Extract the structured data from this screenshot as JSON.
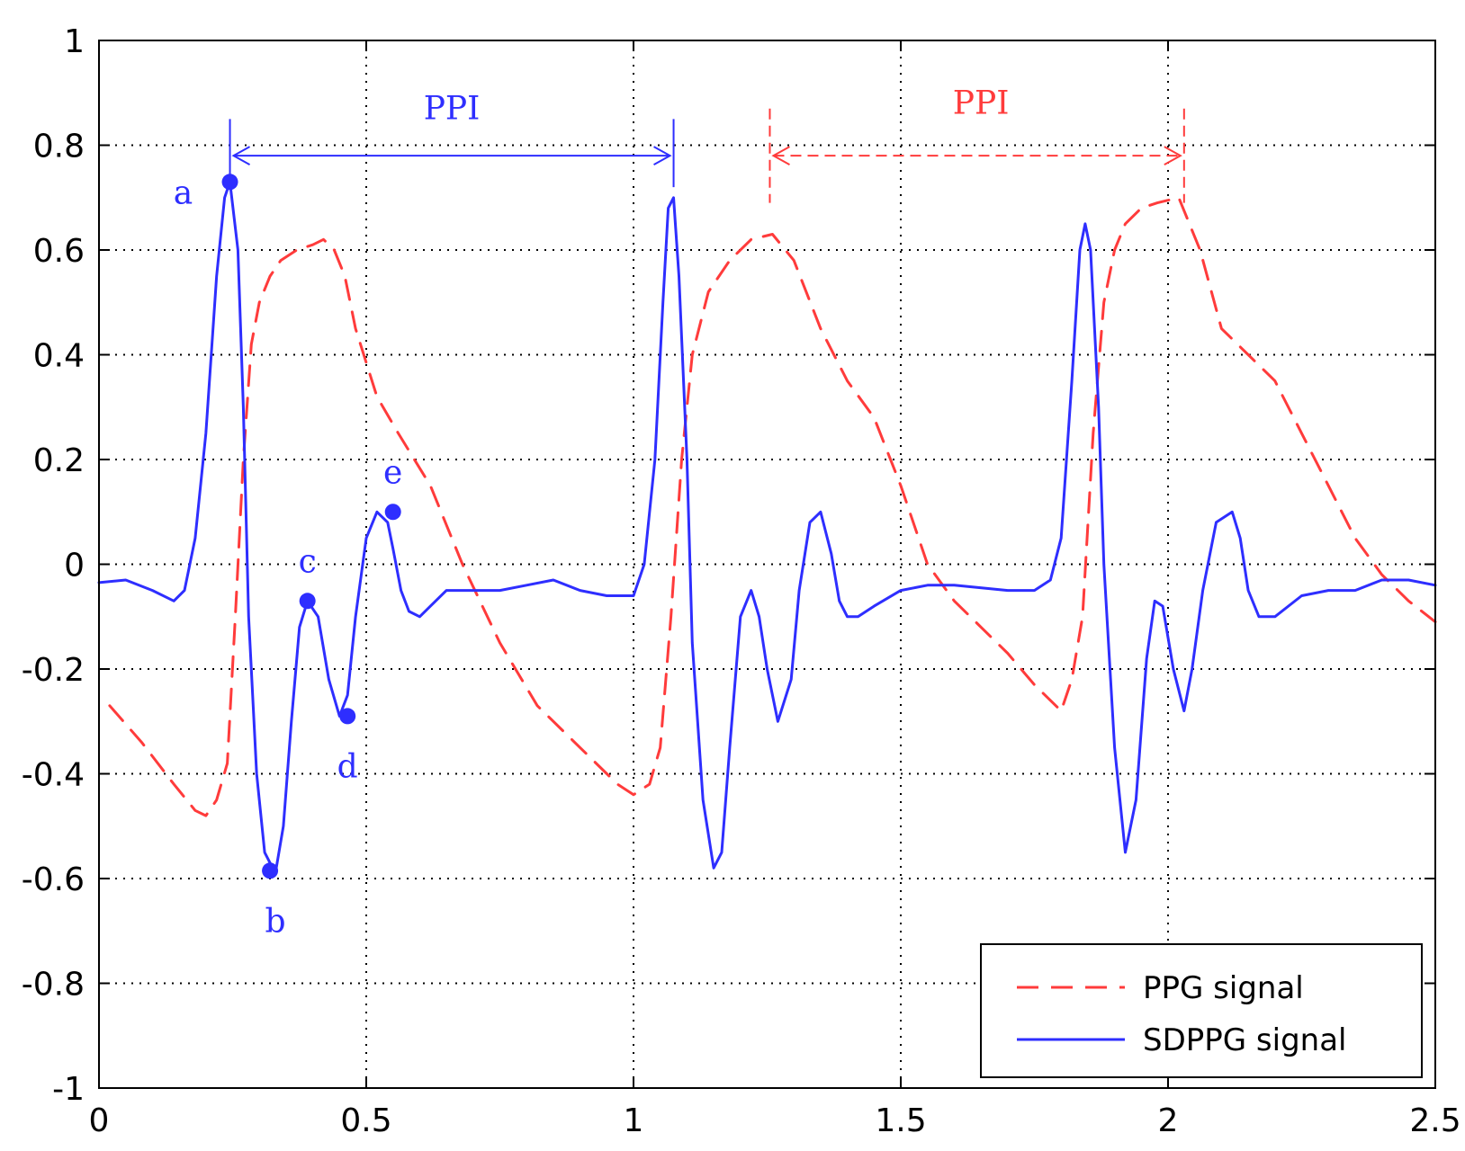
{
  "chart_data": {
    "type": "line",
    "xlim": [
      0,
      2.5
    ],
    "ylim": [
      -1,
      1
    ],
    "x_ticks": [
      "0",
      "0.5",
      "1",
      "1.5",
      "2",
      "2.5"
    ],
    "y_ticks": [
      "-1",
      "-0.8",
      "-0.6",
      "-0.4",
      "-0.2",
      "0",
      "0.2",
      "0.4",
      "0.6",
      "0.8",
      "1"
    ],
    "x_tick_values": [
      0,
      0.5,
      1,
      1.5,
      2,
      2.5
    ],
    "y_tick_values": [
      -1,
      -0.8,
      -0.6,
      -0.4,
      -0.2,
      0,
      0.2,
      0.4,
      0.6,
      0.8,
      1
    ],
    "grid": true,
    "legend_position": "bottom-right",
    "colors": {
      "ppg": "#ff3b3b",
      "sdppg": "#2e2eff"
    },
    "series": [
      {
        "name": "PPG signal",
        "style": "dashed",
        "color": "#ff3b3b",
        "x": [
          0.02,
          0.08,
          0.14,
          0.18,
          0.2,
          0.22,
          0.24,
          0.255,
          0.27,
          0.285,
          0.3,
          0.32,
          0.34,
          0.37,
          0.4,
          0.42,
          0.44,
          0.46,
          0.48,
          0.52,
          0.56,
          0.62,
          0.68,
          0.75,
          0.82,
          0.9,
          0.97,
          1.0,
          1.03,
          1.05,
          1.07,
          1.09,
          1.11,
          1.14,
          1.18,
          1.22,
          1.26,
          1.3,
          1.35,
          1.4,
          1.45,
          1.5,
          1.55,
          1.6,
          1.65,
          1.7,
          1.75,
          1.8,
          1.82,
          1.84,
          1.86,
          1.88,
          1.9,
          1.92,
          1.95,
          1.98,
          2.02,
          2.06,
          2.1,
          2.15,
          2.2,
          2.25,
          2.3,
          2.35,
          2.4,
          2.45,
          2.5
        ],
        "y": [
          -0.27,
          -0.34,
          -0.42,
          -0.47,
          -0.48,
          -0.45,
          -0.38,
          -0.1,
          0.2,
          0.42,
          0.5,
          0.55,
          0.58,
          0.6,
          0.61,
          0.62,
          0.6,
          0.55,
          0.45,
          0.32,
          0.25,
          0.15,
          0.0,
          -0.15,
          -0.27,
          -0.35,
          -0.42,
          -0.44,
          -0.42,
          -0.35,
          -0.1,
          0.2,
          0.4,
          0.52,
          0.58,
          0.62,
          0.63,
          0.58,
          0.45,
          0.35,
          0.28,
          0.15,
          0.0,
          -0.07,
          -0.12,
          -0.17,
          -0.23,
          -0.28,
          -0.22,
          -0.1,
          0.25,
          0.5,
          0.6,
          0.65,
          0.68,
          0.69,
          0.7,
          0.6,
          0.45,
          0.4,
          0.35,
          0.25,
          0.15,
          0.05,
          -0.02,
          -0.07,
          -0.11
        ]
      },
      {
        "name": "SDPPG signal",
        "style": "solid",
        "color": "#2e2eff",
        "x": [
          0.0,
          0.05,
          0.1,
          0.14,
          0.16,
          0.18,
          0.2,
          0.22,
          0.235,
          0.245,
          0.26,
          0.27,
          0.28,
          0.295,
          0.31,
          0.33,
          0.345,
          0.36,
          0.375,
          0.39,
          0.41,
          0.43,
          0.45,
          0.465,
          0.48,
          0.5,
          0.52,
          0.54,
          0.55,
          0.565,
          0.58,
          0.6,
          0.62,
          0.65,
          0.7,
          0.75,
          0.8,
          0.85,
          0.9,
          0.95,
          1.0,
          1.02,
          1.04,
          1.055,
          1.065,
          1.075,
          1.085,
          1.1,
          1.11,
          1.13,
          1.15,
          1.165,
          1.18,
          1.2,
          1.22,
          1.235,
          1.25,
          1.27,
          1.295,
          1.31,
          1.33,
          1.35,
          1.37,
          1.385,
          1.4,
          1.42,
          1.45,
          1.5,
          1.55,
          1.6,
          1.7,
          1.75,
          1.78,
          1.8,
          1.82,
          1.835,
          1.845,
          1.855,
          1.87,
          1.88,
          1.9,
          1.92,
          1.94,
          1.96,
          1.975,
          1.99,
          2.01,
          2.03,
          2.045,
          2.065,
          2.09,
          2.12,
          2.135,
          2.15,
          2.17,
          2.2,
          2.25,
          2.3,
          2.35,
          2.4,
          2.45,
          2.5
        ],
        "y": [
          -0.035,
          -0.03,
          -0.05,
          -0.07,
          -0.05,
          0.05,
          0.25,
          0.55,
          0.7,
          0.73,
          0.6,
          0.3,
          -0.1,
          -0.4,
          -0.55,
          -0.59,
          -0.5,
          -0.3,
          -0.12,
          -0.07,
          -0.1,
          -0.22,
          -0.29,
          -0.25,
          -0.1,
          0.05,
          0.1,
          0.08,
          0.03,
          -0.05,
          -0.09,
          -0.1,
          -0.08,
          -0.05,
          -0.05,
          -0.05,
          -0.04,
          -0.03,
          -0.05,
          -0.06,
          -0.06,
          0.0,
          0.2,
          0.5,
          0.68,
          0.7,
          0.55,
          0.2,
          -0.15,
          -0.45,
          -0.58,
          -0.55,
          -0.35,
          -0.1,
          -0.05,
          -0.1,
          -0.2,
          -0.3,
          -0.22,
          -0.05,
          0.08,
          0.1,
          0.02,
          -0.07,
          -0.1,
          -0.1,
          -0.08,
          -0.05,
          -0.04,
          -0.04,
          -0.05,
          -0.05,
          -0.03,
          0.05,
          0.35,
          0.6,
          0.65,
          0.6,
          0.3,
          0.0,
          -0.35,
          -0.55,
          -0.45,
          -0.18,
          -0.07,
          -0.08,
          -0.2,
          -0.28,
          -0.2,
          -0.05,
          0.08,
          0.1,
          0.05,
          -0.05,
          -0.1,
          -0.1,
          -0.06,
          -0.05,
          -0.05,
          -0.03,
          -0.03,
          -0.04
        ]
      }
    ],
    "markers": [
      {
        "label": "a",
        "x": 0.245,
        "y": 0.73,
        "label_dx": -52,
        "label_dy": 24
      },
      {
        "label": "b",
        "x": 0.32,
        "y": -0.585,
        "label_dx": 6,
        "label_dy": 68
      },
      {
        "label": "c",
        "x": 0.39,
        "y": -0.07,
        "label_dx": 0,
        "label_dy": -32
      },
      {
        "label": "d",
        "x": 0.465,
        "y": -0.29,
        "label_dx": 0,
        "label_dy": 68
      },
      {
        "label": "e",
        "x": 0.55,
        "y": 0.1,
        "label_dx": 0,
        "label_dy": -32
      }
    ],
    "annotations": [
      {
        "text": "PPI",
        "color": "#2e2eff",
        "x1": 0.245,
        "x2": 1.075,
        "y": 0.78,
        "line_top": 0.85,
        "line_bottom": 0.72,
        "style": "solid",
        "label_x": 0.66,
        "label_y": 0.85
      },
      {
        "text": "PPI",
        "color": "#ff3b3b",
        "x1": 1.255,
        "x2": 2.03,
        "y": 0.78,
        "line_top": 0.87,
        "line_bottom": 0.69,
        "style": "dashed",
        "label_x": 1.65,
        "label_y": 0.86
      }
    ],
    "legend": [
      {
        "name": "PPG signal",
        "style": "dashed",
        "color": "#ff3b3b"
      },
      {
        "name": "SDPPG signal",
        "style": "solid",
        "color": "#2e2eff"
      }
    ]
  }
}
